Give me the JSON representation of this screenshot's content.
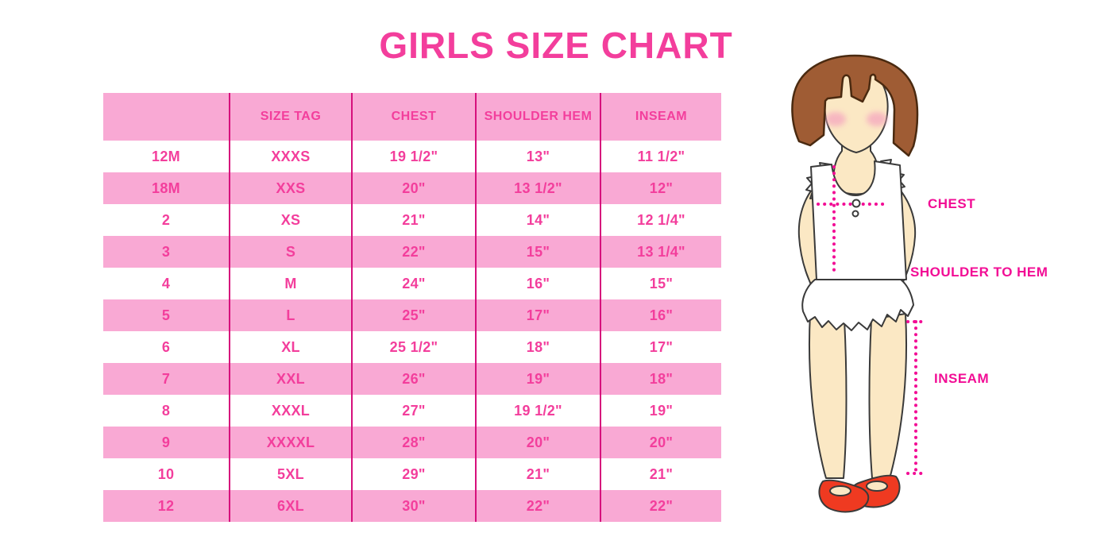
{
  "title": "GIRLS SIZE CHART",
  "colors": {
    "accent_pink": "#F33E9C",
    "row_pink": "#F9A9D4",
    "grid_line": "#D6107C",
    "measure_pink": "#F20D95",
    "hair_brown": "#9F5C34",
    "skin": "#FBE8C4",
    "shoe_red": "#EF3A21"
  },
  "chart_data": {
    "type": "table",
    "title": "GIRLS SIZE CHART",
    "columns": [
      "",
      "SIZE TAG",
      "CHEST",
      "SHOULDER HEM",
      "INSEAM"
    ],
    "rows": [
      [
        "12M",
        "XXXS",
        "19 1/2\"",
        "13\"",
        "11 1/2\""
      ],
      [
        "18M",
        "XXS",
        "20\"",
        "13 1/2\"",
        "12\""
      ],
      [
        "2",
        "XS",
        "21\"",
        "14\"",
        "12 1/4\""
      ],
      [
        "3",
        "S",
        "22\"",
        "15\"",
        "13 1/4\""
      ],
      [
        "4",
        "M",
        "24\"",
        "16\"",
        "15\""
      ],
      [
        "5",
        "L",
        "25\"",
        "17\"",
        "16\""
      ],
      [
        "6",
        "XL",
        "25 1/2\"",
        "18\"",
        "17\""
      ],
      [
        "7",
        "XXL",
        "26\"",
        "19\"",
        "18\""
      ],
      [
        "8",
        "XXXL",
        "27\"",
        "19 1/2\"",
        "19\""
      ],
      [
        "9",
        "XXXXL",
        "28\"",
        "20\"",
        "20\""
      ],
      [
        "10",
        "5XL",
        "29\"",
        "21\"",
        "21\""
      ],
      [
        "12",
        "6XL",
        "30\"",
        "22\"",
        "22\""
      ]
    ]
  },
  "figure": {
    "labels": {
      "chest": "CHEST",
      "shoulder_hem": "SHOULDER TO HEM",
      "inseam": "INSEAM"
    }
  }
}
